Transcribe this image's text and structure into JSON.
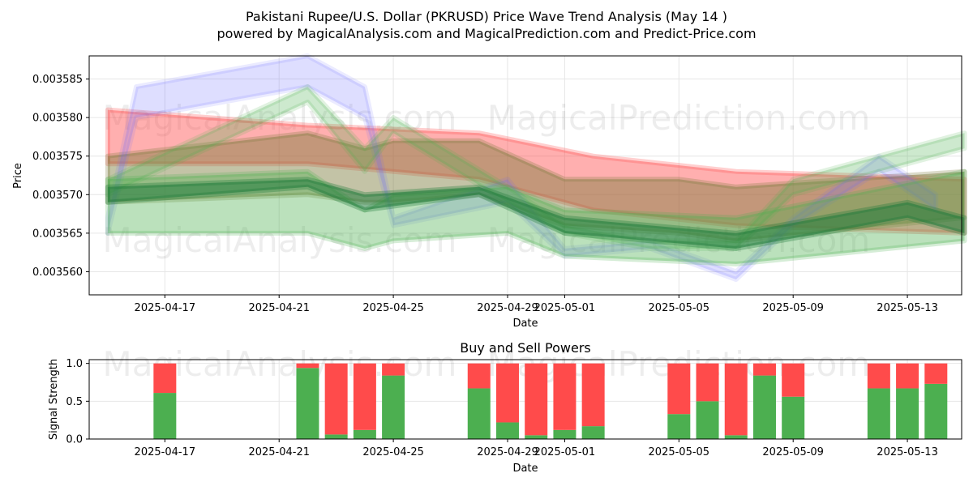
{
  "header": {
    "title": "Pakistani Rupee/U.S. Dollar (PKRUSD) Price Wave Trend Analysis (May 14 )",
    "subtitle": "powered by MagicalAnalysis.com and MagicalPrediction.com and Predict-Price.com"
  },
  "watermarks": {
    "analysis": "MagicalAnalysis.com",
    "prediction": "MagicalPrediction.com"
  },
  "colors": {
    "blue_band": "#6b6bff",
    "red_band": "#ff4d4d",
    "green_band": "#4caf50",
    "dark_green": "#1f7a3a",
    "buy": "#4caf50",
    "sell": "#ff4b4b",
    "grid": "#e6e6e6"
  },
  "chart_data": [
    {
      "type": "area",
      "title": "",
      "xlabel": "Date",
      "ylabel": "Price",
      "x_ticks": [
        "2025-04-17",
        "2025-04-21",
        "2025-04-25",
        "2025-04-29",
        "2025-05-01",
        "2025-05-05",
        "2025-05-09",
        "2025-05-13"
      ],
      "y_ticks": [
        "0.003560",
        "0.003565",
        "0.003570",
        "0.003575",
        "0.003580",
        "0.003585"
      ],
      "xlim": [
        "2025-04-14",
        "2025-05-15"
      ],
      "ylim": [
        0.003557,
        0.003588
      ],
      "grid": true,
      "series": [
        {
          "color": "red",
          "x": [
            "2025-04-15",
            "2025-04-22",
            "2025-04-28",
            "2025-05-02",
            "2025-05-07",
            "2025-05-15"
          ],
          "upper": [
            0.003581,
            0.003579,
            0.003578,
            0.003575,
            0.003573,
            0.003572
          ],
          "lower": [
            0.003574,
            0.003574,
            0.003572,
            0.003568,
            0.003566,
            0.003565
          ]
        },
        {
          "color": "olive",
          "x": [
            "2025-04-15",
            "2025-04-22",
            "2025-04-24",
            "2025-04-25",
            "2025-04-28",
            "2025-05-01",
            "2025-05-05",
            "2025-05-07",
            "2025-05-15"
          ],
          "upper": [
            0.003575,
            0.003578,
            0.003576,
            0.003577,
            0.003577,
            0.003572,
            0.003572,
            0.003571,
            0.003573
          ],
          "lower": [
            0.003569,
            0.00357,
            0.003569,
            0.003569,
            0.00357,
            0.003566,
            0.003565,
            0.003564,
            0.003567
          ]
        },
        {
          "color": "blue",
          "x": [
            "2025-04-15",
            "2025-04-16",
            "2025-04-22",
            "2025-04-24",
            "2025-04-25",
            "2025-04-29",
            "2025-05-01",
            "2025-05-04",
            "2025-05-07",
            "2025-05-09",
            "2025-05-12",
            "2025-05-14"
          ],
          "upper": [
            0.003567,
            0.003584,
            0.003588,
            0.003584,
            0.003567,
            0.003572,
            0.003563,
            0.003564,
            0.00356,
            0.003567,
            0.003575,
            0.00357
          ],
          "lower": [
            0.003565,
            0.00358,
            0.003584,
            0.00358,
            0.003566,
            0.003569,
            0.003562,
            0.003563,
            0.003559,
            0.003566,
            0.003573,
            0.003568
          ]
        },
        {
          "color": "green",
          "x": [
            "2025-04-15",
            "2025-04-22",
            "2025-04-24",
            "2025-04-25",
            "2025-04-29",
            "2025-05-01",
            "2025-05-04",
            "2025-05-07",
            "2025-05-09",
            "2025-05-13",
            "2025-05-15"
          ],
          "upper": [
            0.003572,
            0.003584,
            0.003576,
            0.00358,
            0.003571,
            0.003566,
            0.003564,
            0.003564,
            0.003572,
            0.003576,
            0.003578
          ],
          "lower": [
            0.00357,
            0.003582,
            0.003573,
            0.003578,
            0.003569,
            0.003565,
            0.003563,
            0.003563,
            0.00357,
            0.003574,
            0.003576
          ]
        },
        {
          "color": "light green",
          "x": [
            "2025-04-15",
            "2025-04-22",
            "2025-04-24",
            "2025-04-25",
            "2025-04-29",
            "2025-05-01",
            "2025-05-07",
            "2025-05-15"
          ],
          "upper": [
            0.003572,
            0.003573,
            0.003568,
            0.00357,
            0.003571,
            0.003568,
            0.003567,
            0.003573
          ],
          "lower": [
            0.003565,
            0.003565,
            0.003563,
            0.003564,
            0.003565,
            0.003562,
            0.003561,
            0.003564
          ]
        },
        {
          "color": "dark green",
          "x": [
            "2025-04-15",
            "2025-04-22",
            "2025-04-24",
            "2025-04-28",
            "2025-05-01",
            "2025-05-04",
            "2025-05-07",
            "2025-05-10",
            "2025-05-13",
            "2025-05-15"
          ],
          "upper": [
            0.003571,
            0.003572,
            0.00357,
            0.003571,
            0.003567,
            0.003566,
            0.003565,
            0.003567,
            0.003569,
            0.003567
          ],
          "lower": [
            0.003569,
            0.003571,
            0.003568,
            0.00357,
            0.003565,
            0.003564,
            0.003563,
            0.003565,
            0.003567,
            0.003565
          ]
        }
      ]
    },
    {
      "type": "bar",
      "title": "Buy and Sell Powers",
      "xlabel": "Date",
      "ylabel": "Signal Strength",
      "x_ticks": [
        "2025-04-17",
        "2025-04-21",
        "2025-04-25",
        "2025-04-29",
        "2025-05-01",
        "2025-05-05",
        "2025-05-09",
        "2025-05-13"
      ],
      "y_ticks": [
        "0.0",
        "0.5",
        "1.0"
      ],
      "ylim": [
        0,
        1.05
      ],
      "grid": true,
      "categories": [
        "2025-04-17",
        "2025-04-22",
        "2025-04-23",
        "2025-04-24",
        "2025-04-25",
        "2025-04-28",
        "2025-04-29",
        "2025-04-30",
        "2025-05-01",
        "2025-05-02",
        "2025-05-05",
        "2025-05-06",
        "2025-05-07",
        "2025-05-08",
        "2025-05-09",
        "2025-05-12",
        "2025-05-13",
        "2025-05-14"
      ],
      "series": [
        {
          "name": "Buy",
          "values": [
            0.61,
            0.94,
            0.06,
            0.12,
            0.84,
            0.67,
            0.22,
            0.05,
            0.12,
            0.17,
            0.33,
            0.5,
            0.05,
            0.84,
            0.56,
            0.67,
            0.67,
            0.73
          ]
        },
        {
          "name": "Sell",
          "values": [
            0.39,
            0.06,
            0.94,
            0.88,
            0.16,
            0.33,
            0.78,
            0.95,
            0.88,
            0.83,
            0.67,
            0.5,
            0.95,
            0.16,
            0.44,
            0.33,
            0.33,
            0.27
          ]
        }
      ]
    }
  ]
}
